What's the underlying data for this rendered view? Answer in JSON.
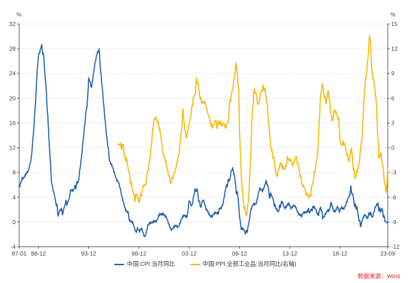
{
  "chart_data": {
    "type": "line",
    "left_axis_unit": "%",
    "right_axis_unit": "%",
    "left_ylim": [
      -4,
      32
    ],
    "left_ticks": [
      -4,
      0,
      4,
      8,
      12,
      16,
      20,
      24,
      28,
      32
    ],
    "right_ylim": [
      -12,
      15
    ],
    "right_ticks": [
      -12,
      -9,
      -6,
      -3,
      0,
      3,
      6,
      9,
      12,
      15
    ],
    "x_range": [
      1987.0,
      2023.67
    ],
    "x_ticks": [
      {
        "label": "87-01",
        "x": 1987.0
      },
      {
        "label": "88-12",
        "x": 1988.92
      },
      {
        "label": "93-12",
        "x": 1993.92
      },
      {
        "label": "98-12",
        "x": 1998.92
      },
      {
        "label": "03-12",
        "x": 2003.92
      },
      {
        "label": "08-12",
        "x": 2008.92
      },
      {
        "label": "13-12",
        "x": 2013.92
      },
      {
        "label": "18-12",
        "x": 2018.92
      },
      {
        "label": "23-09",
        "x": 2023.67
      }
    ],
    "series": [
      {
        "name": "中国:CPI:当月同比",
        "axis": "left",
        "color": "#1f5fa8",
        "points": [
          [
            1987.0,
            5.2
          ],
          [
            1987.3,
            7.2
          ],
          [
            1987.6,
            7.6
          ],
          [
            1987.9,
            7.9
          ],
          [
            1988.2,
            10.5
          ],
          [
            1988.5,
            16.0
          ],
          [
            1988.75,
            23.0
          ],
          [
            1988.92,
            27.0
          ],
          [
            1989.1,
            28.0
          ],
          [
            1989.25,
            28.4
          ],
          [
            1989.45,
            26.5
          ],
          [
            1989.7,
            21.0
          ],
          [
            1989.95,
            14.0
          ],
          [
            1990.2,
            7.0
          ],
          [
            1990.5,
            4.2
          ],
          [
            1990.75,
            2.5
          ],
          [
            1990.9,
            1.0
          ],
          [
            1991.1,
            2.2
          ],
          [
            1991.35,
            1.4
          ],
          [
            1991.6,
            3.2
          ],
          [
            1991.85,
            3.0
          ],
          [
            1992.1,
            4.8
          ],
          [
            1992.4,
            5.3
          ],
          [
            1992.65,
            5.8
          ],
          [
            1992.9,
            6.7
          ],
          [
            1993.2,
            10.2
          ],
          [
            1993.5,
            15.5
          ],
          [
            1993.75,
            19.0
          ],
          [
            1993.92,
            23.0
          ],
          [
            1994.2,
            22.0
          ],
          [
            1994.5,
            25.0
          ],
          [
            1994.8,
            27.5
          ],
          [
            1994.95,
            27.8
          ],
          [
            1995.2,
            22.5
          ],
          [
            1995.5,
            17.5
          ],
          [
            1995.8,
            12.5
          ],
          [
            1996.0,
            10.0
          ],
          [
            1996.3,
            8.5
          ],
          [
            1996.6,
            7.4
          ],
          [
            1996.9,
            6.5
          ],
          [
            1997.2,
            4.0
          ],
          [
            1997.5,
            2.6
          ],
          [
            1997.8,
            1.5
          ],
          [
            1998.0,
            0.3
          ],
          [
            1998.3,
            -0.4
          ],
          [
            1998.6,
            -1.4
          ],
          [
            1998.92,
            -1.2
          ],
          [
            1999.2,
            -1.4
          ],
          [
            1999.5,
            -2.2
          ],
          [
            1999.8,
            -0.7
          ],
          [
            2000.1,
            -0.3
          ],
          [
            2000.4,
            0.4
          ],
          [
            2000.7,
            0.0
          ],
          [
            2001.0,
            1.2
          ],
          [
            2001.3,
            1.6
          ],
          [
            2001.6,
            0.6
          ],
          [
            2001.9,
            -0.4
          ],
          [
            2002.2,
            -1.1
          ],
          [
            2002.5,
            -0.9
          ],
          [
            2002.8,
            -0.7
          ],
          [
            2003.1,
            0.4
          ],
          [
            2003.4,
            0.8
          ],
          [
            2003.7,
            1.0
          ],
          [
            2003.92,
            3.2
          ],
          [
            2004.2,
            2.8
          ],
          [
            2004.5,
            5.0
          ],
          [
            2004.7,
            5.3
          ],
          [
            2004.9,
            3.2
          ],
          [
            2005.1,
            2.4
          ],
          [
            2005.3,
            3.9
          ],
          [
            2005.6,
            1.8
          ],
          [
            2005.9,
            1.4
          ],
          [
            2006.2,
            1.0
          ],
          [
            2006.5,
            1.2
          ],
          [
            2006.8,
            1.6
          ],
          [
            2007.0,
            2.2
          ],
          [
            2007.3,
            3.2
          ],
          [
            2007.6,
            5.6
          ],
          [
            2007.8,
            6.5
          ],
          [
            2008.0,
            7.1
          ],
          [
            2008.15,
            8.7
          ],
          [
            2008.4,
            7.8
          ],
          [
            2008.6,
            4.9
          ],
          [
            2008.8,
            4.0
          ],
          [
            2008.92,
            1.2
          ],
          [
            2009.1,
            -1.2
          ],
          [
            2009.4,
            -1.5
          ],
          [
            2009.6,
            -1.8
          ],
          [
            2009.8,
            -0.8
          ],
          [
            2010.0,
            1.5
          ],
          [
            2010.3,
            2.8
          ],
          [
            2010.6,
            3.3
          ],
          [
            2010.9,
            5.1
          ],
          [
            2011.2,
            5.0
          ],
          [
            2011.5,
            6.5
          ],
          [
            2011.7,
            6.2
          ],
          [
            2011.9,
            4.1
          ],
          [
            2012.1,
            4.5
          ],
          [
            2012.3,
            3.4
          ],
          [
            2012.5,
            2.2
          ],
          [
            2012.8,
            1.9
          ],
          [
            2012.95,
            2.5
          ],
          [
            2013.1,
            3.2
          ],
          [
            2013.4,
            2.1
          ],
          [
            2013.7,
            3.1
          ],
          [
            2013.92,
            2.5
          ],
          [
            2014.2,
            2.4
          ],
          [
            2014.5,
            2.3
          ],
          [
            2014.8,
            1.6
          ],
          [
            2015.1,
            0.8
          ],
          [
            2015.4,
            1.5
          ],
          [
            2015.7,
            2.0
          ],
          [
            2015.95,
            1.6
          ],
          [
            2016.2,
            2.3
          ],
          [
            2016.5,
            1.9
          ],
          [
            2016.8,
            1.3
          ],
          [
            2017.0,
            2.5
          ],
          [
            2017.2,
            0.8
          ],
          [
            2017.5,
            1.5
          ],
          [
            2017.8,
            1.6
          ],
          [
            2018.0,
            2.9
          ],
          [
            2018.3,
            1.8
          ],
          [
            2018.6,
            2.3
          ],
          [
            2018.92,
            1.9
          ],
          [
            2019.2,
            2.3
          ],
          [
            2019.5,
            2.8
          ],
          [
            2019.8,
            3.8
          ],
          [
            2020.0,
            5.4
          ],
          [
            2020.2,
            4.3
          ],
          [
            2020.4,
            2.5
          ],
          [
            2020.6,
            2.4
          ],
          [
            2020.8,
            0.5
          ],
          [
            2020.95,
            -0.5
          ],
          [
            2021.1,
            -0.2
          ],
          [
            2021.4,
            1.3
          ],
          [
            2021.7,
            0.8
          ],
          [
            2021.9,
            1.5
          ],
          [
            2022.1,
            0.9
          ],
          [
            2022.4,
            2.1
          ],
          [
            2022.7,
            2.8
          ],
          [
            2022.8,
            2.1
          ],
          [
            2022.95,
            1.8
          ],
          [
            2023.1,
            2.1
          ],
          [
            2023.3,
            0.7
          ],
          [
            2023.5,
            0.0
          ],
          [
            2023.6,
            -0.3
          ],
          [
            2023.67,
            0.0
          ]
        ]
      },
      {
        "name": "中国:PPI:全部工业品:当月同比(右轴)",
        "axis": "right",
        "color": "#f5b800",
        "points": [
          [
            1996.8,
            0.3
          ],
          [
            1997.0,
            0.5
          ],
          [
            1997.2,
            0.0
          ],
          [
            1997.35,
            0.4
          ],
          [
            1997.5,
            -1.2
          ],
          [
            1997.7,
            -1.5
          ],
          [
            1997.9,
            -2.8
          ],
          [
            1998.1,
            -4.2
          ],
          [
            1998.3,
            -5.1
          ],
          [
            1998.5,
            -6.3
          ],
          [
            1998.7,
            -5.5
          ],
          [
            1998.9,
            -6.6
          ],
          [
            1999.1,
            -5.8
          ],
          [
            1999.3,
            -5.0
          ],
          [
            1999.6,
            -4.2
          ],
          [
            1999.8,
            -2.8
          ],
          [
            2000.0,
            -1.5
          ],
          [
            2000.3,
            2.5
          ],
          [
            2000.5,
            3.7
          ],
          [
            2000.75,
            3.3
          ],
          [
            2001.0,
            2.2
          ],
          [
            2001.3,
            -0.8
          ],
          [
            2001.6,
            -1.5
          ],
          [
            2001.9,
            -3.5
          ],
          [
            2002.1,
            -4.3
          ],
          [
            2002.3,
            -3.4
          ],
          [
            2002.6,
            -2.6
          ],
          [
            2002.9,
            -0.7
          ],
          [
            2003.1,
            1.5
          ],
          [
            2003.3,
            4.5
          ],
          [
            2003.5,
            2.0
          ],
          [
            2003.7,
            1.2
          ],
          [
            2003.92,
            3.2
          ],
          [
            2004.1,
            4.0
          ],
          [
            2004.3,
            5.8
          ],
          [
            2004.5,
            6.5
          ],
          [
            2004.65,
            8.3
          ],
          [
            2004.85,
            7.5
          ],
          [
            2005.0,
            6.0
          ],
          [
            2005.2,
            5.6
          ],
          [
            2005.5,
            5.2
          ],
          [
            2005.8,
            4.2
          ],
          [
            2006.0,
            3.2
          ],
          [
            2006.2,
            2.4
          ],
          [
            2006.5,
            3.5
          ],
          [
            2006.7,
            2.5
          ],
          [
            2006.9,
            3.2
          ],
          [
            2007.1,
            2.8
          ],
          [
            2007.3,
            2.9
          ],
          [
            2007.6,
            2.6
          ],
          [
            2007.8,
            3.2
          ],
          [
            2007.95,
            5.4
          ],
          [
            2008.15,
            6.6
          ],
          [
            2008.4,
            8.2
          ],
          [
            2008.55,
            10.1
          ],
          [
            2008.7,
            9.1
          ],
          [
            2008.85,
            6.6
          ],
          [
            2008.92,
            2.0
          ],
          [
            2009.1,
            -3.3
          ],
          [
            2009.3,
            -6.6
          ],
          [
            2009.5,
            -7.8
          ],
          [
            2009.65,
            -8.2
          ],
          [
            2009.85,
            -5.8
          ],
          [
            2010.0,
            -2.1
          ],
          [
            2010.2,
            4.3
          ],
          [
            2010.4,
            7.1
          ],
          [
            2010.6,
            6.4
          ],
          [
            2010.8,
            5.0
          ],
          [
            2011.0,
            6.5
          ],
          [
            2011.25,
            7.3
          ],
          [
            2011.45,
            7.1
          ],
          [
            2011.7,
            5.0
          ],
          [
            2011.9,
            1.7
          ],
          [
            2012.1,
            -0.3
          ],
          [
            2012.35,
            -1.4
          ],
          [
            2012.6,
            -3.5
          ],
          [
            2012.8,
            -2.8
          ],
          [
            2012.95,
            -1.9
          ],
          [
            2013.2,
            -2.3
          ],
          [
            2013.45,
            -2.7
          ],
          [
            2013.7,
            -1.3
          ],
          [
            2013.92,
            -1.4
          ],
          [
            2014.2,
            -2.0
          ],
          [
            2014.5,
            -1.1
          ],
          [
            2014.75,
            -2.0
          ],
          [
            2014.95,
            -3.3
          ],
          [
            2015.2,
            -4.6
          ],
          [
            2015.5,
            -5.4
          ],
          [
            2015.75,
            -5.9
          ],
          [
            2015.95,
            -5.9
          ],
          [
            2016.2,
            -4.3
          ],
          [
            2016.45,
            -2.6
          ],
          [
            2016.7,
            -0.8
          ],
          [
            2016.95,
            5.5
          ],
          [
            2017.15,
            7.8
          ],
          [
            2017.35,
            6.4
          ],
          [
            2017.55,
            5.5
          ],
          [
            2017.75,
            6.9
          ],
          [
            2017.95,
            4.9
          ],
          [
            2018.15,
            3.1
          ],
          [
            2018.4,
            4.6
          ],
          [
            2018.6,
            4.1
          ],
          [
            2018.8,
            3.3
          ],
          [
            2018.92,
            0.9
          ],
          [
            2019.1,
            0.4
          ],
          [
            2019.35,
            0.6
          ],
          [
            2019.6,
            -0.8
          ],
          [
            2019.85,
            -1.6
          ],
          [
            2020.05,
            0.1
          ],
          [
            2020.25,
            -2.5
          ],
          [
            2020.45,
            -3.7
          ],
          [
            2020.6,
            -3.0
          ],
          [
            2020.8,
            -2.1
          ],
          [
            2020.95,
            -0.4
          ],
          [
            2021.15,
            1.7
          ],
          [
            2021.35,
            6.8
          ],
          [
            2021.55,
            9.0
          ],
          [
            2021.7,
            10.7
          ],
          [
            2021.85,
            13.5
          ],
          [
            2021.95,
            12.9
          ],
          [
            2022.1,
            9.1
          ],
          [
            2022.3,
            8.0
          ],
          [
            2022.5,
            6.1
          ],
          [
            2022.65,
            2.3
          ],
          [
            2022.8,
            -1.3
          ],
          [
            2022.95,
            -0.7
          ],
          [
            2023.1,
            -1.4
          ],
          [
            2023.3,
            -3.6
          ],
          [
            2023.5,
            -5.4
          ],
          [
            2023.6,
            -4.4
          ],
          [
            2023.67,
            -2.5
          ]
        ]
      }
    ],
    "grid": "horizontal dashed",
    "legend_position": "bottom-center"
  },
  "source": {
    "text": "数据来源：Wind"
  }
}
